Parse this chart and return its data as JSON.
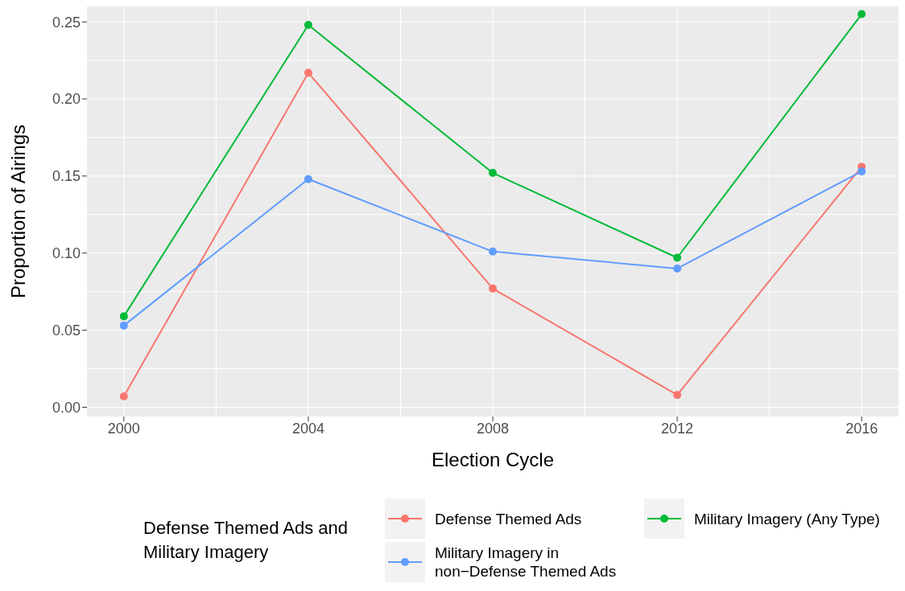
{
  "chart_data": {
    "type": "line",
    "xlabel": "Election Cycle",
    "ylabel": "Proportion of Airings",
    "legend_title": "Defense Themed Ads and Military Imagery",
    "x": [
      2000,
      2004,
      2008,
      2012,
      2016
    ],
    "series": [
      {
        "name": "Defense Themed Ads",
        "color": "#f8766d",
        "values": [
          0.007,
          0.217,
          0.077,
          0.008,
          0.156
        ]
      },
      {
        "name": "Military Imagery in non−Defense Themed Ads",
        "color": "#619cff",
        "values": [
          0.053,
          0.148,
          0.101,
          0.09,
          0.153
        ]
      },
      {
        "name": "Military Imagery (Any Type)",
        "color": "#00ba38",
        "values": [
          0.059,
          0.248,
          0.152,
          0.097,
          0.255
        ]
      }
    ],
    "xlim": [
      1999.2,
      2016.8
    ],
    "xticks": [
      2000,
      2004,
      2008,
      2012,
      2016
    ],
    "ylim": [
      -0.006,
      0.26
    ],
    "yticks": [
      {
        "value": 0,
        "label": "0.00"
      },
      0.05,
      {
        "value": 0.1,
        "label": "0.10"
      },
      0.15,
      {
        "value": 0.2,
        "label": "0.20"
      },
      0.25
    ],
    "grid": true,
    "legend": "bottom",
    "marker": "circle",
    "line_style": "solid"
  }
}
